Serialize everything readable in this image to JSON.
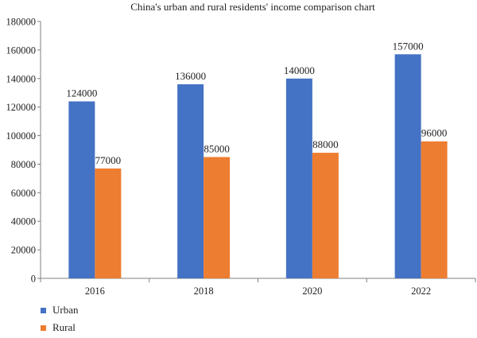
{
  "chart_data": {
    "type": "bar",
    "title": "China's urban and rural residents' income comparison chart",
    "categories": [
      "2016",
      "2018",
      "2020",
      "2022"
    ],
    "series": [
      {
        "name": "Urban",
        "color": "#4472C4",
        "values": [
          124000,
          136000,
          140000,
          157000
        ]
      },
      {
        "name": "Rural",
        "color": "#ED7D31",
        "values": [
          77000,
          85000,
          88000,
          96000
        ]
      }
    ],
    "ylim": [
      0,
      180000
    ],
    "yticks": [
      0,
      20000,
      40000,
      60000,
      80000,
      100000,
      120000,
      140000,
      160000,
      180000
    ],
    "grid": false,
    "legend": "bottom-left"
  }
}
